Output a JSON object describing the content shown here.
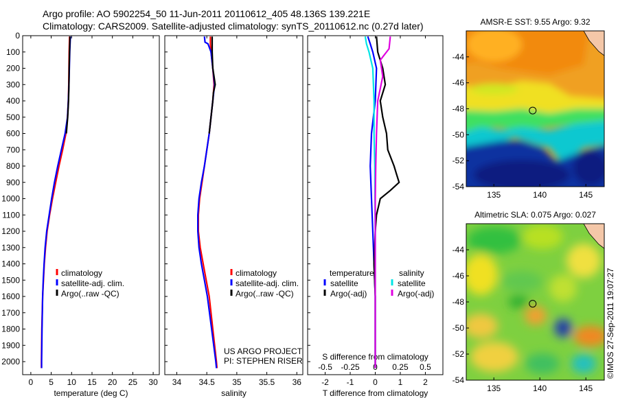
{
  "header": {
    "line1": "Argo profile: AO 5902254_50 11-Jun-2011 20110612_405 48.136S 139.221E",
    "line2": "Climatology: CARS2009. Satellite-adjusted climatology: synTS_20110612.nc (0.27d later)"
  },
  "watermark": "©IMOS 27-Sep-2011 19:07:27",
  "chart_data": [
    {
      "type": "line",
      "name": "temperature-profile",
      "xlabel": "temperature (deg C)",
      "ylabel": "",
      "xlim": [
        -2,
        31.5
      ],
      "ylim": [
        2080,
        0
      ],
      "xticks": [
        0,
        5,
        10,
        15,
        20,
        25,
        30
      ],
      "yticks": [
        0,
        100,
        200,
        300,
        400,
        500,
        600,
        700,
        800,
        900,
        1000,
        1100,
        1200,
        1300,
        1400,
        1500,
        1600,
        1700,
        1800,
        1900,
        2000
      ],
      "legend": {
        "position": "center",
        "entries": [
          "climatology",
          "satellite-adj. clim.",
          "Argo(..raw -QC)"
        ]
      },
      "series": [
        {
          "name": "climatology",
          "color": "#ff0000",
          "depth": [
            5,
            100,
            200,
            300,
            400,
            500,
            600,
            700,
            800,
            900,
            1000,
            1100,
            1200,
            1300,
            1400,
            1500,
            1600,
            1800,
            2000,
            2040
          ],
          "values": [
            9.5,
            9.4,
            9.35,
            9.3,
            9.2,
            9.0,
            8.6,
            7.8,
            6.9,
            6.1,
            5.3,
            4.6,
            4.0,
            3.6,
            3.3,
            3.1,
            2.9,
            2.7,
            2.6,
            2.6
          ]
        },
        {
          "name": "satellite-adj. clim.",
          "color": "#0000ff",
          "depth": [
            5,
            100,
            200,
            300,
            400,
            500,
            600,
            700,
            800,
            900,
            1000,
            1100,
            1200,
            1300,
            1400,
            1500,
            1600,
            1800,
            2000,
            2040
          ],
          "values": [
            9.7,
            9.55,
            9.45,
            9.35,
            9.2,
            9.0,
            8.4,
            7.5,
            6.6,
            5.8,
            5.1,
            4.5,
            3.9,
            3.5,
            3.25,
            3.05,
            2.9,
            2.75,
            2.65,
            2.65
          ]
        },
        {
          "name": "Argo(..raw -QC)",
          "color": "#000000",
          "depth": [
            5,
            100,
            200,
            300,
            400,
            500,
            600
          ],
          "values": [
            9.6,
            9.5,
            9.4,
            9.35,
            9.25,
            9.05,
            8.7
          ]
        }
      ]
    },
    {
      "type": "line",
      "name": "salinity-profile",
      "xlabel": "salinity",
      "xlim": [
        33.8,
        36.1
      ],
      "ylim": [
        2080,
        0
      ],
      "xticks": [
        34,
        34.5,
        35,
        35.5,
        36
      ],
      "legend": {
        "position": "center",
        "entries": [
          "climatology",
          "satellite-adj. clim.",
          "Argo(..raw -QC)"
        ]
      },
      "annotation": [
        "US ARGO PROJECT",
        "PI: STEPHEN RISER"
      ],
      "series": [
        {
          "name": "climatology",
          "color": "#ff0000",
          "depth": [
            5,
            50,
            100,
            200,
            300,
            400,
            500,
            600,
            700,
            800,
            900,
            1000,
            1100,
            1200,
            1300,
            1400,
            1500,
            1600,
            1800,
            2000,
            2040
          ],
          "values": [
            34.56,
            34.56,
            34.57,
            34.6,
            34.62,
            34.6,
            34.57,
            34.54,
            34.5,
            34.46,
            34.42,
            34.38,
            34.36,
            34.36,
            34.39,
            34.44,
            34.49,
            34.54,
            34.6,
            34.66,
            34.67
          ]
        },
        {
          "name": "satellite-adj. clim.",
          "color": "#0000ff",
          "depth": [
            5,
            40,
            50,
            100,
            200,
            300,
            400,
            500,
            600,
            700,
            800,
            900,
            1000,
            1100,
            1200,
            1300,
            1400,
            1500,
            1600,
            1800,
            2000,
            2040
          ],
          "values": [
            34.46,
            34.47,
            34.52,
            34.57,
            34.6,
            34.63,
            34.6,
            34.57,
            34.54,
            34.5,
            34.46,
            34.41,
            34.37,
            34.35,
            34.35,
            34.37,
            34.41,
            34.46,
            34.51,
            34.58,
            34.65,
            34.66
          ]
        },
        {
          "name": "Argo(..raw -QC)",
          "color": "#000000",
          "depth": [
            5,
            100,
            200,
            250,
            300,
            350,
            400,
            500,
            600
          ],
          "values": [
            34.59,
            34.59,
            34.6,
            34.62,
            34.64,
            34.61,
            34.6,
            34.57,
            34.54
          ]
        }
      ]
    },
    {
      "type": "line",
      "name": "difference-profile",
      "xlabel": "T difference from climatology",
      "x2label": "S difference from climatology",
      "xlim": [
        -2.7,
        2.7
      ],
      "ylim": [
        2080,
        0
      ],
      "xticks": [
        -2,
        -1,
        0,
        1,
        2
      ],
      "x2ticks": [
        "-0.5",
        "-0.25",
        "0",
        "0.25",
        "0.5"
      ],
      "legend": {
        "position": "center",
        "col1_title": "temperature",
        "col2_title": "salinity",
        "entries": [
          "satellite",
          "Argo(-adj)",
          "satellite",
          "Argo(-adj)"
        ]
      },
      "series": [
        {
          "name": "temperature satellite",
          "color": "#0000ff",
          "depth": [
            5,
            50,
            100,
            200,
            400,
            600,
            800,
            1000,
            1200,
            1400,
            1600,
            2040
          ],
          "values": [
            -0.3,
            -0.2,
            -0.1,
            0.05,
            0.0,
            -0.15,
            -0.2,
            -0.15,
            -0.1,
            -0.05,
            0.0,
            0.0
          ]
        },
        {
          "name": "temperature Argo(-adj)",
          "color": "#000000",
          "depth": [
            5,
            100,
            200,
            300,
            400,
            500,
            600,
            700,
            800,
            850,
            900,
            950,
            1000,
            1100,
            1200,
            1400,
            1600,
            2040
          ],
          "values": [
            0.05,
            0.1,
            0.3,
            0.4,
            0.2,
            0.3,
            0.45,
            0.5,
            0.75,
            0.85,
            0.95,
            0.6,
            0.2,
            0.05,
            0.0,
            -0.05,
            0.0,
            0.0
          ]
        },
        {
          "name": "salinity satellite",
          "color": "#00e5e5",
          "depth": [
            5,
            50,
            100,
            200,
            400,
            600,
            800,
            1000,
            1200,
            1400,
            1600,
            2040
          ],
          "values": [
            -0.4,
            -0.35,
            -0.25,
            -0.1,
            -0.05,
            -0.05,
            -0.02,
            -0.01,
            0.0,
            0.0,
            0.0,
            0.0
          ]
        },
        {
          "name": "salinity Argo(-adj)",
          "color": "#e000e0",
          "depth": [
            5,
            80,
            150,
            250,
            400,
            600,
            800,
            1000,
            1200,
            1400,
            1600,
            2040
          ],
          "values": [
            0.6,
            0.55,
            0.2,
            0.3,
            0.1,
            0.05,
            0.02,
            0.0,
            0.0,
            0.0,
            0.0,
            0.0
          ]
        }
      ]
    },
    {
      "type": "heatmap",
      "name": "sst-map",
      "title": "AMSR-E SST: 9.55 Argo: 9.32",
      "xticks": [
        135,
        140,
        145
      ],
      "yticks": [
        -44,
        -46,
        -48,
        -50,
        -52,
        -54
      ],
      "xlim": [
        132,
        147
      ],
      "ylim": [
        -54,
        -42
      ],
      "argo_position": {
        "lon": 139.221,
        "lat": -48.136
      }
    },
    {
      "type": "heatmap",
      "name": "sla-map",
      "title": "Altimetric SLA: 0.075 Argo: 0.027",
      "xticks": [
        135,
        140,
        145
      ],
      "yticks": [
        -44,
        -46,
        -48,
        -50,
        -52,
        -54
      ],
      "xlim": [
        132,
        147
      ],
      "ylim": [
        -54,
        -42
      ],
      "argo_position": {
        "lon": 139.221,
        "lat": -48.136
      }
    }
  ]
}
